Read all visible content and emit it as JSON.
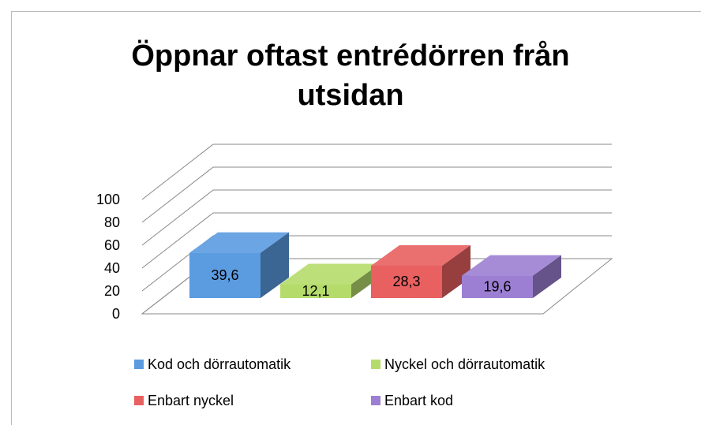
{
  "chart_data": {
    "type": "bar3d",
    "title": "Öppnar oftast entrédörren från utsidan",
    "series": [
      {
        "name": "Kod och dörrautomatik",
        "color": "#5b9be0",
        "values": [
          39.6
        ],
        "value_labels": [
          "39,6"
        ]
      },
      {
        "name": "Nyckel och dörrautomatik",
        "color": "#b5db6b",
        "values": [
          12.1
        ],
        "value_labels": [
          "12,1"
        ]
      },
      {
        "name": "Enbart nyckel",
        "color": "#e86060",
        "values": [
          28.3
        ],
        "value_labels": [
          "28,3"
        ]
      },
      {
        "name": "Enbart kod",
        "color": "#9c7fd3",
        "values": [
          19.6
        ],
        "value_labels": [
          "19,6"
        ]
      }
    ],
    "ylim": [
      0,
      100
    ],
    "yticks": [
      0,
      20,
      40,
      60,
      80,
      100
    ],
    "grid": true,
    "legend": "bottom"
  }
}
